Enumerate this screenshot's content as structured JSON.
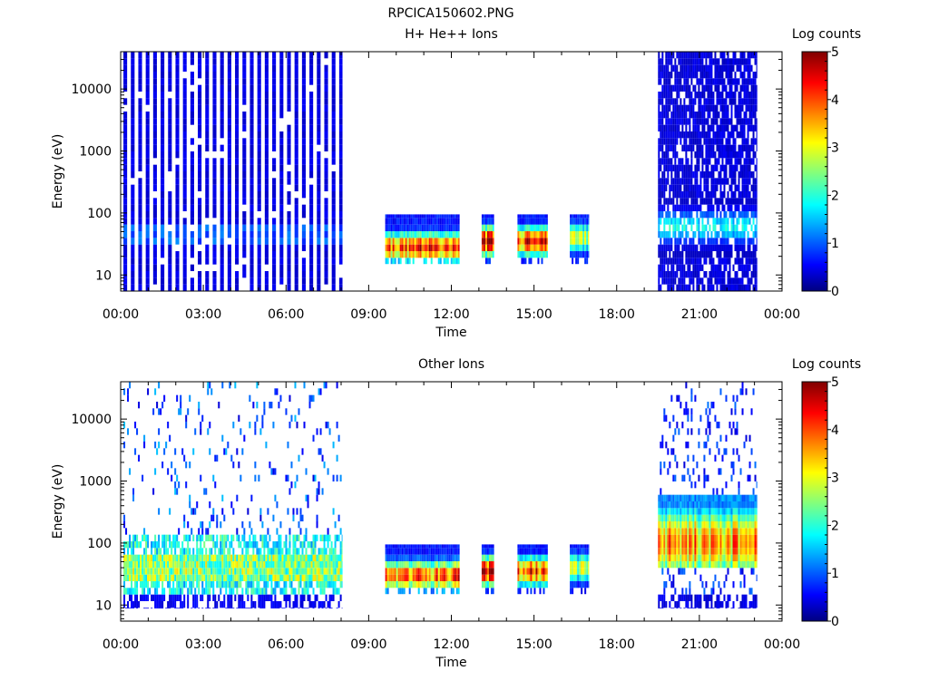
{
  "figure_title": "RPCICA150602.PNG",
  "chart_data": [
    {
      "type": "heatmap",
      "title": "H+ He++ Ions",
      "xlabel": "Time",
      "ylabel": "Energy (eV)",
      "y_scale": "log",
      "ylim": [
        5.5,
        40000
      ],
      "xlim_hours": [
        0,
        24
      ],
      "x_ticks": [
        "00:00",
        "03:00",
        "06:00",
        "09:00",
        "12:00",
        "15:00",
        "18:00",
        "21:00",
        "00:00"
      ],
      "y_ticks": [
        {
          "v": 10,
          "label": "10"
        },
        {
          "v": 100,
          "label": "100"
        },
        {
          "v": 1000,
          "label": "1000"
        },
        {
          "v": 10000,
          "label": "10000"
        }
      ],
      "colorbar": {
        "title": "Log counts",
        "min": 0,
        "max": 5,
        "ticks": [
          "0",
          "1",
          "2",
          "3",
          "4",
          "5"
        ]
      },
      "blocks": [
        {
          "name": "early",
          "start": 0.1,
          "end": 8.05,
          "emin": 5.5,
          "emax": 40000,
          "peak": 1.1,
          "peak_e": 45,
          "mode": "stripe"
        },
        {
          "name": "mid1",
          "start": 9.6,
          "end": 12.3,
          "emin": 15,
          "emax": 95,
          "peak": 4.0,
          "peak_e": 28,
          "mode": "dense"
        },
        {
          "name": "mid2",
          "start": 13.1,
          "end": 13.55,
          "emin": 15,
          "emax": 95,
          "peak": 4.6,
          "peak_e": 35,
          "mode": "dense"
        },
        {
          "name": "mid3",
          "start": 14.4,
          "end": 15.5,
          "emin": 15,
          "emax": 95,
          "peak": 4.2,
          "peak_e": 35,
          "mode": "dense"
        },
        {
          "name": "mid4",
          "start": 16.3,
          "end": 17.0,
          "emin": 15,
          "emax": 95,
          "peak": 2.8,
          "peak_e": 40,
          "mode": "dense"
        },
        {
          "name": "late",
          "start": 19.5,
          "end": 23.1,
          "emin": 5.5,
          "emax": 40000,
          "peak": 1.6,
          "peak_e": 60,
          "mode": "speckle"
        }
      ]
    },
    {
      "type": "heatmap",
      "title": "Other Ions",
      "xlabel": "Time",
      "ylabel": "Energy (eV)",
      "y_scale": "log",
      "ylim": [
        5.5,
        40000
      ],
      "xlim_hours": [
        0,
        24
      ],
      "x_ticks": [
        "00:00",
        "03:00",
        "06:00",
        "09:00",
        "12:00",
        "15:00",
        "18:00",
        "21:00",
        "00:00"
      ],
      "y_ticks": [
        {
          "v": 10,
          "label": "10"
        },
        {
          "v": 100,
          "label": "100"
        },
        {
          "v": 1000,
          "label": "1000"
        },
        {
          "v": 10000,
          "label": "10000"
        }
      ],
      "colorbar": {
        "title": "Log counts",
        "min": 0,
        "max": 5,
        "ticks": [
          "0",
          "1",
          "2",
          "3",
          "4",
          "5"
        ]
      },
      "blocks": [
        {
          "name": "early",
          "start": 0.1,
          "end": 8.05,
          "emin": 9,
          "emax": 40000,
          "peak": 3.5,
          "peak_e": 40,
          "mode": "sparse"
        },
        {
          "name": "mid1",
          "start": 9.6,
          "end": 12.3,
          "emin": 15,
          "emax": 95,
          "peak": 4.0,
          "peak_e": 30,
          "mode": "dense"
        },
        {
          "name": "mid2",
          "start": 13.1,
          "end": 13.55,
          "emin": 15,
          "emax": 95,
          "peak": 4.6,
          "peak_e": 35,
          "mode": "dense"
        },
        {
          "name": "mid3",
          "start": 14.4,
          "end": 15.5,
          "emin": 15,
          "emax": 95,
          "peak": 4.2,
          "peak_e": 35,
          "mode": "dense"
        },
        {
          "name": "mid4",
          "start": 16.3,
          "end": 17.0,
          "emin": 15,
          "emax": 95,
          "peak": 2.8,
          "peak_e": 40,
          "mode": "dense"
        },
        {
          "name": "late",
          "start": 19.5,
          "end": 23.1,
          "emin": 9,
          "emax": 40000,
          "peak": 3.6,
          "peak_e": 100,
          "mode": "broad"
        }
      ]
    }
  ]
}
